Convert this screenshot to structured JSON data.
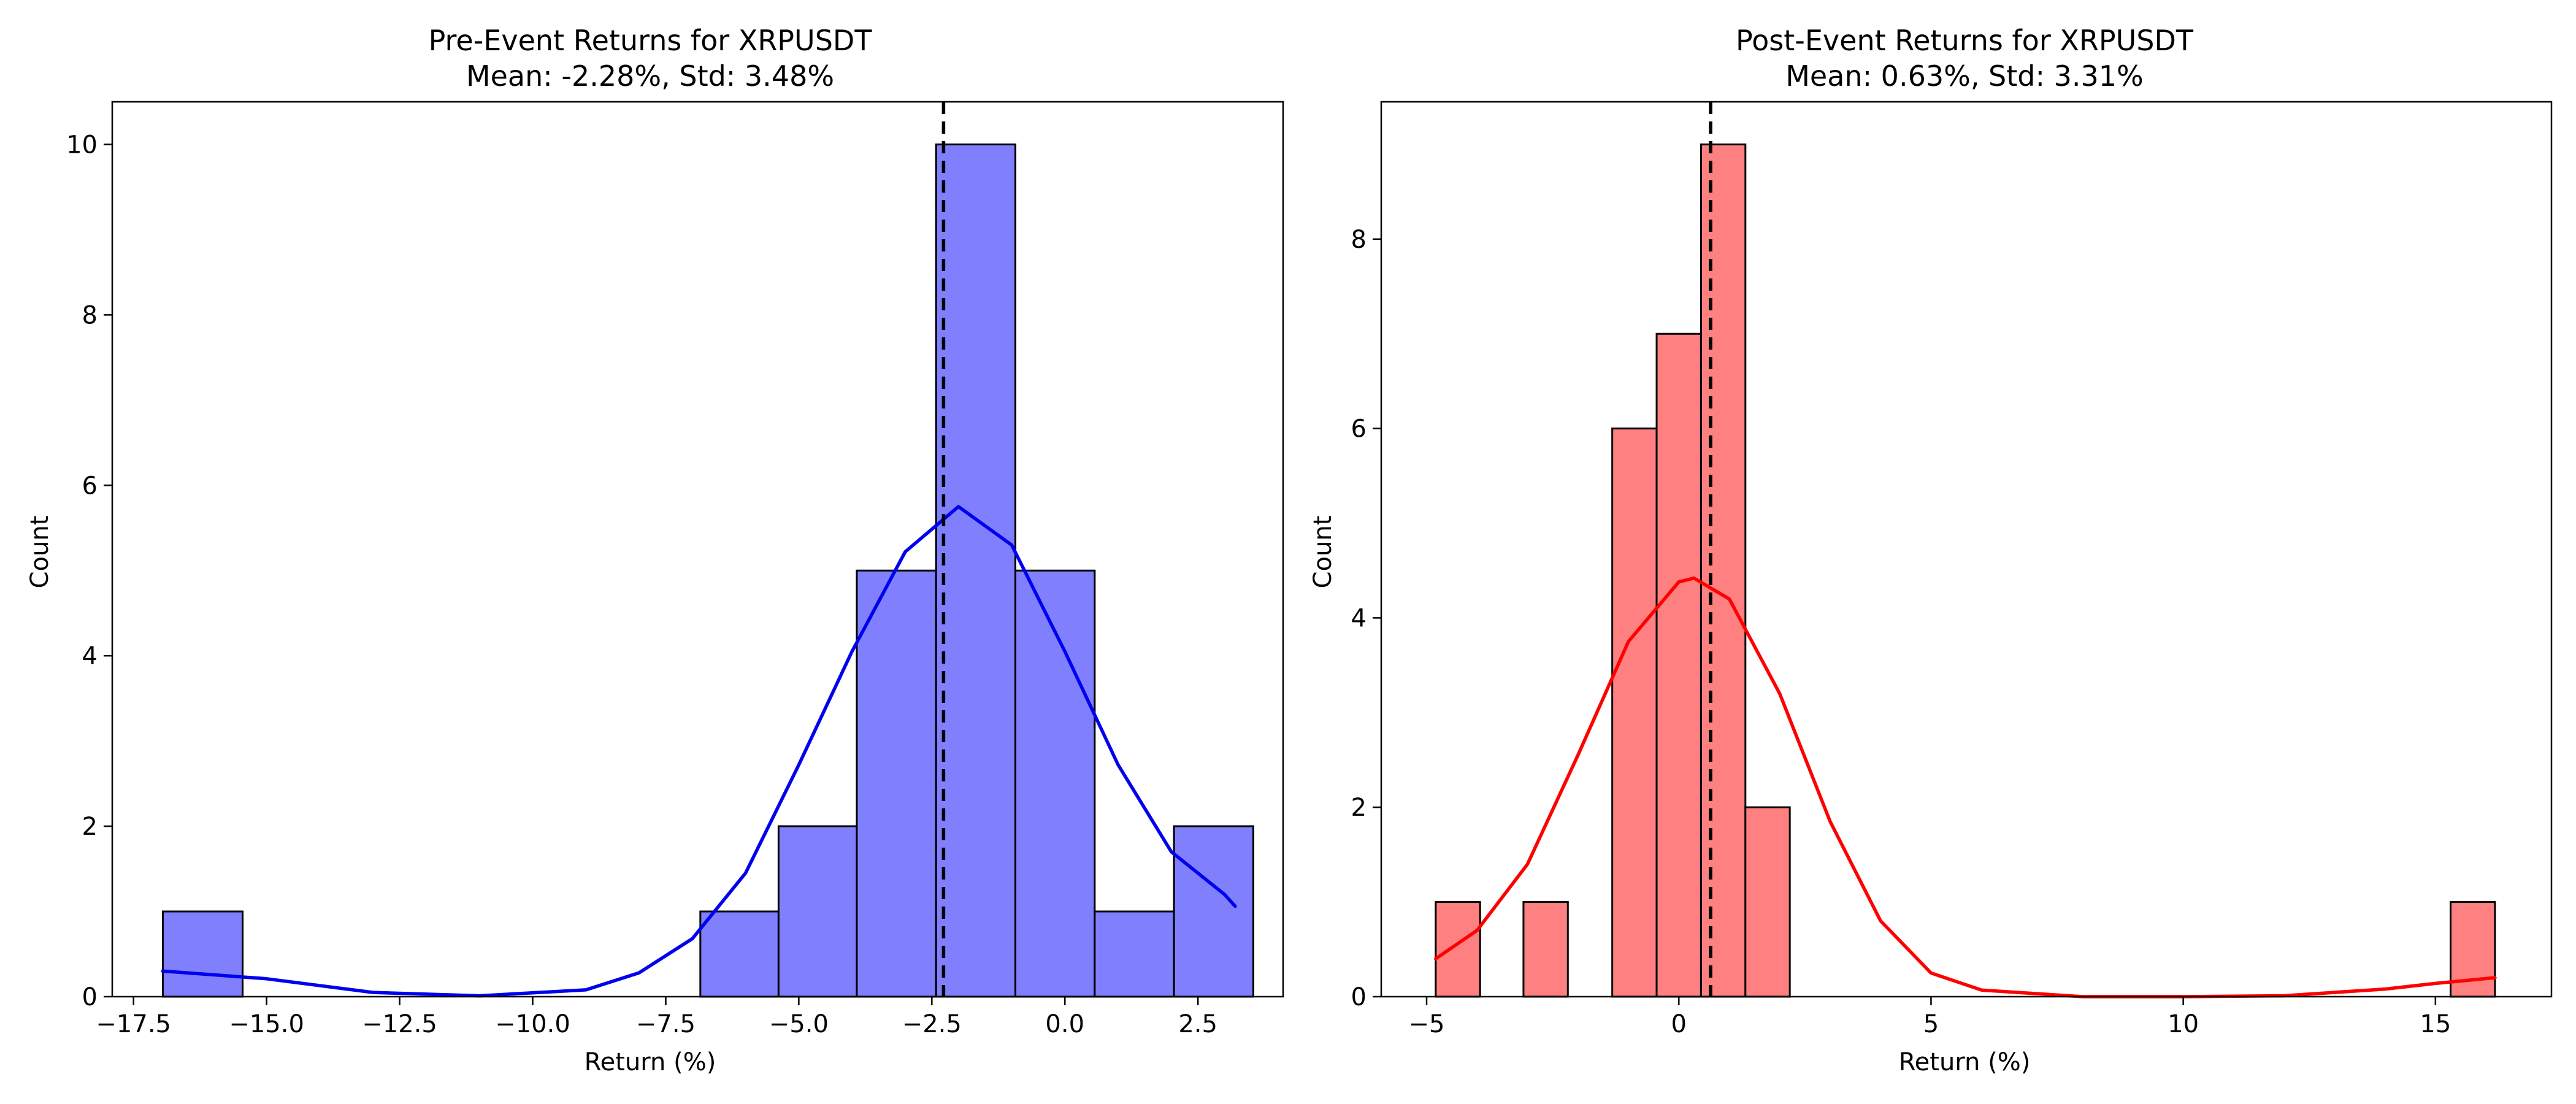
{
  "chart_data": [
    {
      "type": "bar",
      "title_line1": "Pre-Event Returns for XRPUSDT",
      "title_line2": "Mean: -2.28%, Std: 3.48%",
      "xlabel": "Return (%)",
      "ylabel": "Count",
      "xlim": [
        -17.9,
        4.1
      ],
      "ylim": [
        0,
        10.5
      ],
      "xticks": [
        -17.5,
        -15.0,
        -12.5,
        -10.0,
        -7.5,
        -5.0,
        -2.5,
        0.0,
        2.5
      ],
      "xtick_labels": [
        "−17.5",
        "−15.0",
        "−12.5",
        "−10.0",
        "−7.5",
        "−5.0",
        "−2.5",
        "0.0",
        "2.5"
      ],
      "yticks": [
        0,
        2,
        4,
        6,
        8,
        10
      ],
      "ytick_labels": [
        "0",
        "2",
        "4",
        "6",
        "8",
        "10"
      ],
      "bins": [
        {
          "start": -16.95,
          "end": -15.45,
          "count": 1
        },
        {
          "start": -6.85,
          "end": -5.38,
          "count": 1
        },
        {
          "start": -5.38,
          "end": -3.91,
          "count": 2
        },
        {
          "start": -3.91,
          "end": -2.42,
          "count": 5
        },
        {
          "start": -2.42,
          "end": -0.93,
          "count": 10
        },
        {
          "start": -0.93,
          "end": 0.56,
          "count": 5
        },
        {
          "start": 0.56,
          "end": 2.05,
          "count": 1
        },
        {
          "start": 2.05,
          "end": 3.54,
          "count": 2
        }
      ],
      "mean_line": -2.28,
      "kde": {
        "x": [
          -16.95,
          -15.0,
          -13.0,
          -11.0,
          -9.0,
          -8.0,
          -7.0,
          -6.0,
          -5.0,
          -4.0,
          -3.0,
          -2.0,
          -1.0,
          0.0,
          1.0,
          2.0,
          3.0,
          3.2
        ],
        "y": [
          0.3,
          0.21,
          0.05,
          0.01,
          0.08,
          0.28,
          0.68,
          1.45,
          2.72,
          4.05,
          5.22,
          5.75,
          5.3,
          4.05,
          2.72,
          1.7,
          1.2,
          1.06
        ]
      },
      "colors": {
        "bar": "#8080ff",
        "edge": "#000000",
        "kde": "#0000ee"
      }
    },
    {
      "type": "bar",
      "title_line1": "Post-Event Returns for XRPUSDT",
      "title_line2": "Mean: 0.63%, Std: 3.31%",
      "xlabel": "Return (%)",
      "ylabel": "Count",
      "xlim": [
        -5.9,
        17.3
      ],
      "ylim": [
        0,
        9.45
      ],
      "xticks": [
        -5,
        0,
        5,
        10,
        15
      ],
      "xtick_labels": [
        "−5",
        "0",
        "5",
        "10",
        "15"
      ],
      "yticks": [
        0,
        2,
        4,
        6,
        8
      ],
      "ytick_labels": [
        "0",
        "2",
        "4",
        "6",
        "8"
      ],
      "bins": [
        {
          "start": -4.82,
          "end": -3.94,
          "count": 1
        },
        {
          "start": -3.08,
          "end": -2.2,
          "count": 1
        },
        {
          "start": -1.32,
          "end": -0.44,
          "count": 6
        },
        {
          "start": -0.44,
          "end": 0.44,
          "count": 7
        },
        {
          "start": 0.44,
          "end": 1.32,
          "count": 9
        },
        {
          "start": 1.32,
          "end": 2.2,
          "count": 2
        },
        {
          "start": 15.3,
          "end": 16.18,
          "count": 1
        }
      ],
      "mean_line": 0.63,
      "kde": {
        "x": [
          -4.82,
          -4.0,
          -3.0,
          -2.0,
          -1.0,
          0.0,
          0.3,
          1.0,
          2.0,
          3.0,
          4.0,
          5.0,
          6.0,
          8.0,
          10.0,
          12.0,
          14.0,
          15.0,
          16.18
        ],
        "y": [
          0.4,
          0.7,
          1.4,
          2.55,
          3.75,
          4.38,
          4.42,
          4.2,
          3.2,
          1.85,
          0.8,
          0.25,
          0.07,
          0.0,
          0.0,
          0.01,
          0.08,
          0.14,
          0.2
        ]
      },
      "colors": {
        "bar": "#ff8080",
        "edge": "#000000",
        "kde": "#ff0000"
      }
    }
  ]
}
